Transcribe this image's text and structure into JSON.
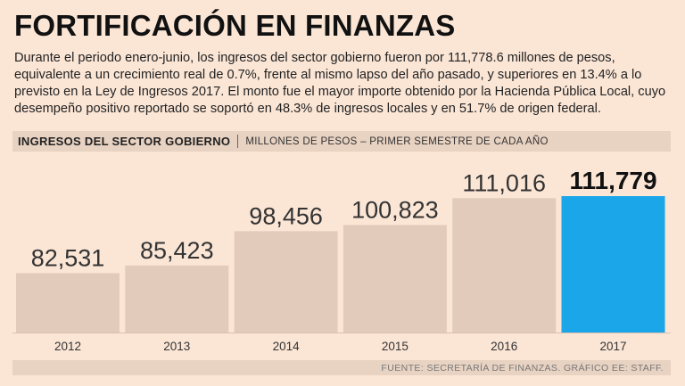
{
  "header": {
    "title": "FORTIFICACIÓN EN FINANZAS",
    "description": "Durante el periodo enero-junio, los ingresos del sector gobierno fueron por 111,778.6 millones de pesos, equivalente a un crecimiento real de 0.7%, frente al mismo lapso del año pasado, y superiores en 13.4% a lo previsto en la Ley de Ingresos 2017. El monto fue el mayor importe obtenido por la Hacienda Pública Local, cuyo desempeño positivo reportado se soportó en 48.3% de ingresos locales y en 51.7% de origen federal."
  },
  "section": {
    "title": "INGRESOS DEL SECTOR GOBIERNO",
    "subtitle": "MILLONES DE PESOS – PRIMER SEMESTRE DE CADA AÑO"
  },
  "footer": {
    "source": "FUENTE: SECRETARÍA DE FINANZAS. GRÁFICO EE: STAFF."
  },
  "chart_data": {
    "type": "bar",
    "title": "INGRESOS DEL SECTOR GOBIERNO",
    "ylabel": "MILLONES DE PESOS",
    "categories": [
      "2012",
      "2013",
      "2014",
      "2015",
      "2016",
      "2017"
    ],
    "values": [
      82531,
      85423,
      98456,
      100823,
      111016,
      111779
    ],
    "value_labels": [
      "82,531",
      "85,423",
      "98,456",
      "100,823",
      "111,016",
      "111,779"
    ],
    "highlight_index": 5,
    "ylim": [
      60000,
      115000
    ],
    "colors": {
      "bar": "#e2cbbb",
      "highlight": "#1aa6e8",
      "label": "#333333",
      "highlight_label": "#111111"
    }
  }
}
